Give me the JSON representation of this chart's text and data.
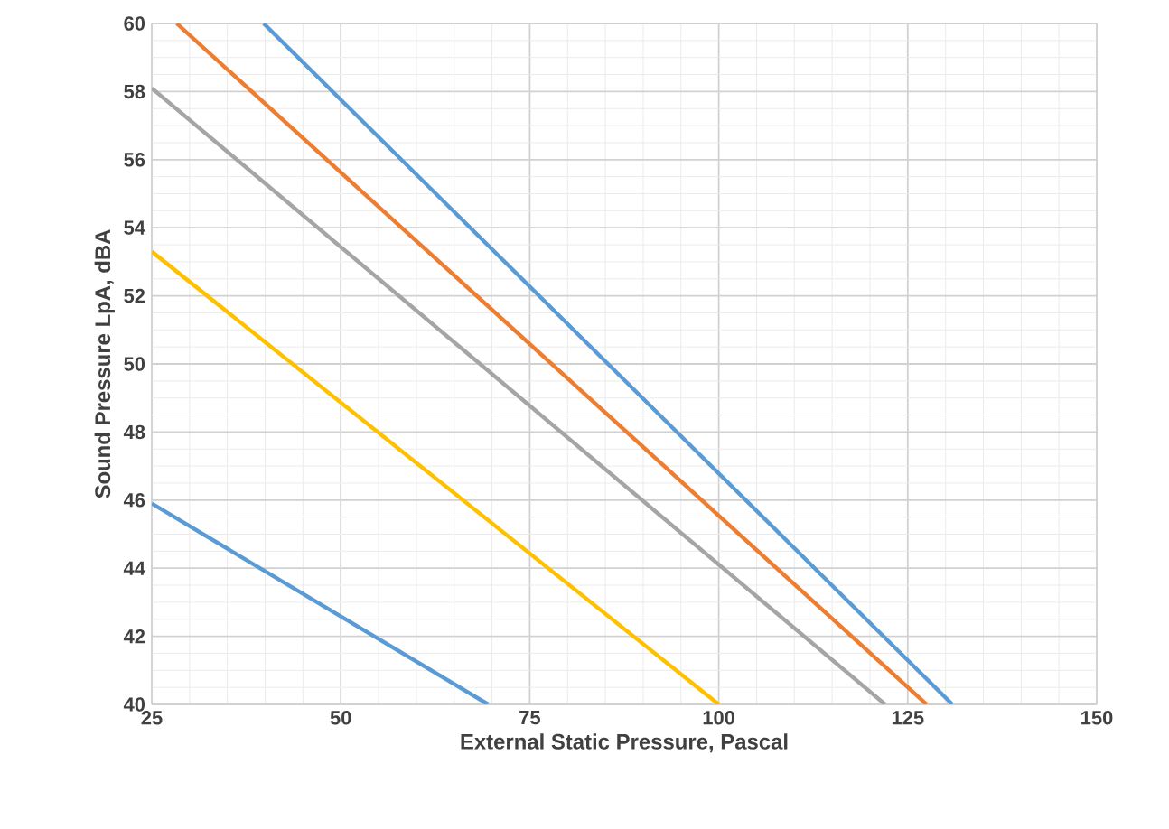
{
  "chart_data": {
    "type": "line",
    "xlabel": "External Static Pressure, Pascal",
    "ylabel": "Sound Pressure LpA, dBA",
    "xlim": [
      25,
      150
    ],
    "ylim": [
      40,
      60
    ],
    "xticks": [
      25,
      50,
      75,
      100,
      125,
      150
    ],
    "yticks": [
      40,
      42,
      44,
      46,
      48,
      50,
      52,
      54,
      56,
      58,
      60
    ],
    "grid": true,
    "marker": "none",
    "line_style": "solid",
    "series": [
      {
        "color": "#5b9bd5",
        "x": [
          25,
          69.5
        ],
        "values": [
          45.9,
          40
        ]
      },
      {
        "color": "#ffc000",
        "x": [
          25,
          100
        ],
        "values": [
          53.3,
          40
        ]
      },
      {
        "color": "#a5a5a5",
        "x": [
          25,
          122
        ],
        "values": [
          58.1,
          40
        ]
      },
      {
        "color": "#ed7d31",
        "x": [
          28.3,
          127.5
        ],
        "values": [
          60,
          40
        ]
      },
      {
        "color": "#5b9bd5",
        "x": [
          39.8,
          130.9
        ],
        "values": [
          60,
          40
        ]
      }
    ]
  }
}
